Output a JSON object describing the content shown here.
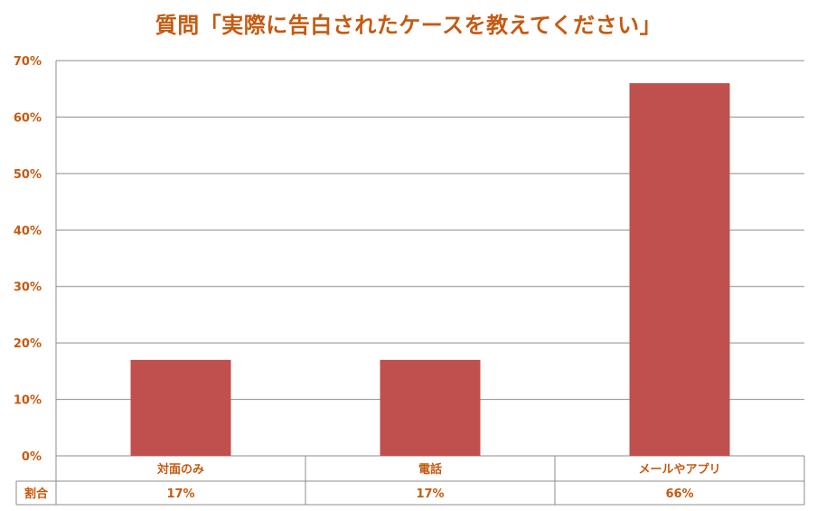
{
  "title": "質問「実際に告白されたケースを教えてください」",
  "colors": {
    "bar": "#c0504d",
    "text": "#c55a11",
    "grid": "#8c8c8c"
  },
  "chart_data": {
    "type": "bar",
    "title": "質問「実際に告白されたケースを教えてください」",
    "categories": [
      "対面のみ",
      "電話",
      "メールやアプリ"
    ],
    "values": [
      17,
      17,
      66
    ],
    "unit": "%",
    "ylim": [
      0,
      70
    ],
    "yticks": [
      "0%",
      "10%",
      "20%",
      "30%",
      "40%",
      "50%",
      "60%",
      "70%"
    ],
    "grid": true,
    "data_table": {
      "row_label": "割合",
      "values": [
        "17%",
        "17%",
        "66%"
      ]
    }
  }
}
